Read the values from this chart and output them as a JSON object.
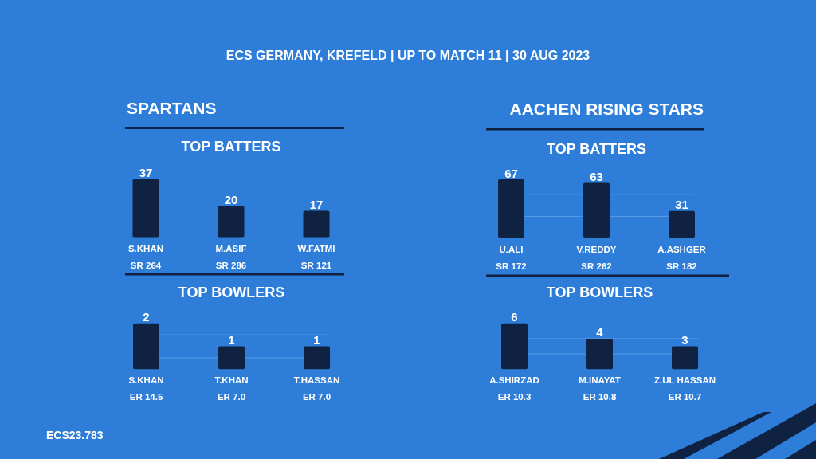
{
  "chart_data": [
    {
      "type": "bar",
      "title": "SPARTANS",
      "subtitle": "TOP BATTERS",
      "categories": [
        "S.KHAN",
        "M.ASIF",
        "W.FATMI"
      ],
      "values": [
        37,
        20,
        17
      ],
      "color": "#0f2242",
      "data_labels": true,
      "ylim": [
        0,
        37
      ],
      "yticks": [
        {
          "value": 15,
          "label": null
        },
        {
          "value": 30,
          "label": null
        }
      ],
      "grid": "y",
      "tick_labels": "x",
      "annotations": [
        "ECS GERMANY, KREFELD | UP TO MATCH 11 | 30 AUG 2023",
        "ECS23.783",
        "SR 264",
        "SR 286",
        "SR 121"
      ]
    },
    {
      "type": "bar",
      "title": "AACHEN RISING STARS",
      "subtitle": "TOP BATTERS",
      "categories": [
        "U.ALI",
        "V.REDDY",
        "A.ASHGER"
      ],
      "values": [
        67,
        63,
        31
      ],
      "color": "#0f2242",
      "data_labels": true,
      "ylim": [
        0,
        67
      ],
      "yticks": [
        {
          "value": 25,
          "label": null
        },
        {
          "value": 50,
          "label": null
        }
      ],
      "grid": "y",
      "tick_labels": "x",
      "annotations": [
        "SR 172",
        "SR 262",
        "SR 182"
      ]
    },
    {
      "type": "bar",
      "title": "TOP BOWLERS",
      "categories": [
        "S.KHAN",
        "T.KHAN",
        "T.HASSAN"
      ],
      "values": [
        2,
        1,
        1
      ],
      "color": "#0f2242",
      "data_labels": true,
      "ylim": [
        0,
        2
      ],
      "yticks": [
        {
          "value": 0.5,
          "label": null
        },
        {
          "value": 1.5,
          "label": null
        }
      ],
      "grid": "y",
      "tick_labels": "x",
      "annotations": [
        "ER 14.5",
        "ER 7.0",
        "ER 7.0"
      ]
    },
    {
      "type": "bar",
      "title": "TOP BOWLERS",
      "categories": [
        "A.SHIRZAD",
        "M.INAYAT",
        "Z.UL HASSAN"
      ],
      "values": [
        6,
        4,
        3
      ],
      "color": "#0f2242",
      "data_labels": true,
      "ylim": [
        0,
        6
      ],
      "yticks": [
        {
          "value": 2,
          "label": null
        },
        {
          "value": 4,
          "label": null
        }
      ],
      "grid": "y",
      "tick_labels": "x",
      "annotations": [
        "ER 10.3",
        "ER 10.8",
        "ER 10.7"
      ]
    }
  ]
}
